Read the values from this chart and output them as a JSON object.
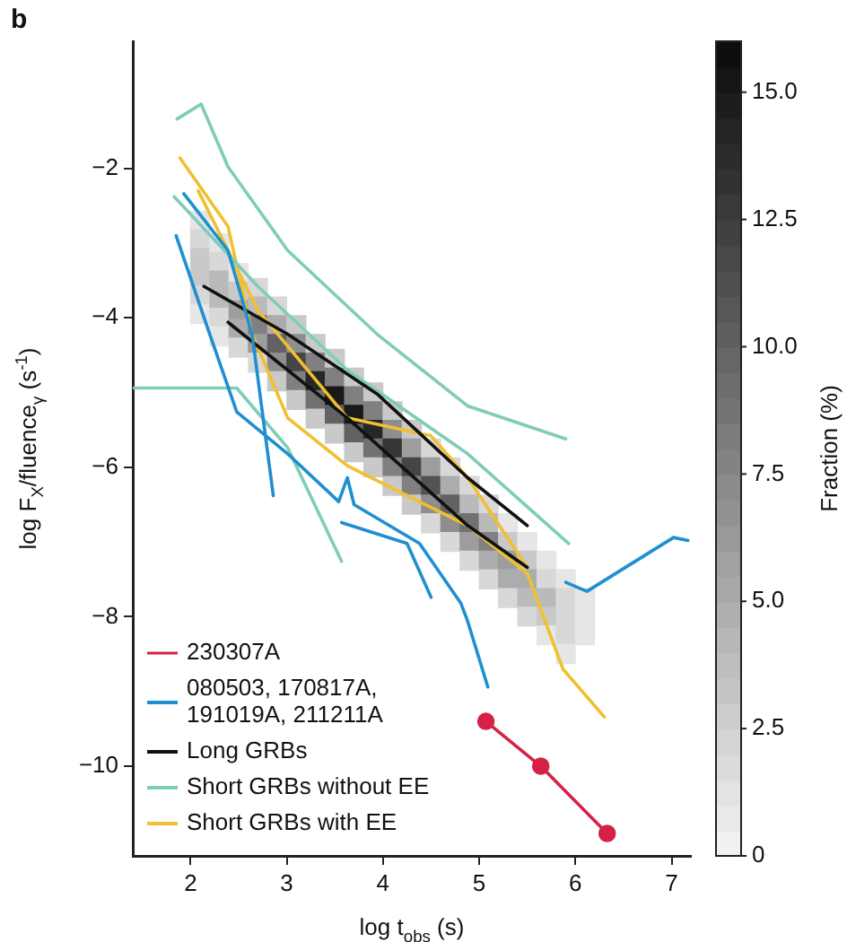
{
  "chart_data": {
    "type": "line",
    "title": "b",
    "xlabel": "log t$_{obs}$ (s)",
    "ylabel": "log F$_{X}$/fluence$_{γ}$ (s$^{-1}$)",
    "xlim": [
      1.4,
      7.2
    ],
    "xticks": [
      2,
      3,
      4,
      5,
      6,
      7
    ],
    "ylim": [
      -11.2,
      -0.3
    ],
    "yticks": [
      -10,
      -8,
      -6,
      -4,
      -2
    ],
    "grid": false,
    "legend": "bottom left",
    "clabel": "Fraction (%)",
    "clim": [
      0,
      16
    ],
    "cticks": [
      0,
      2.5,
      {
        "value": 5,
        "label": "5.0"
      },
      7.5,
      {
        "value": 10,
        "label": "10.0"
      },
      12.5,
      {
        "value": 15,
        "label": "15.0"
      }
    ],
    "series": [
      {
        "name": "230307A",
        "color": "#d62246",
        "marker": "circle",
        "x": [
          5.07,
          5.64,
          6.33
        ],
        "values": [
          -9.4,
          -10.0,
          -10.9
        ]
      },
      {
        "name": "080503, 170817A, 191019A, 211211A",
        "color": "#1f8fd0",
        "marker": "none",
        "x": [
          1.85,
          2.2,
          2.48,
          3.01,
          3.54,
          3.63,
          3.7,
          4.38,
          4.81,
          4.88,
          5.09
        ],
        "values": [
          -2.9,
          -4.22,
          -5.26,
          -5.82,
          -6.46,
          -6.14,
          -6.5,
          -7.02,
          -7.82,
          -8.06,
          -8.94
        ]
      },
      {
        "color": "#1f8fd0",
        "marker": "none",
        "x": [
          1.93,
          2.39,
          2.64,
          2.86
        ],
        "values": [
          -2.34,
          -3.1,
          -4.22,
          -6.38
        ]
      },
      {
        "color": "#1f8fd0",
        "marker": "none",
        "x": [
          3.57,
          4.25,
          4.5
        ],
        "values": [
          -6.74,
          -7.02,
          -7.74
        ]
      },
      {
        "color": "#1f8fd0",
        "marker": "none",
        "x": [
          5.9,
          6.12,
          7.02,
          7.17
        ],
        "values": [
          -7.54,
          -7.66,
          -6.94,
          -6.98
        ]
      },
      {
        "name": "Long GRBs",
        "color": "#111111",
        "marker": "none",
        "x": [
          2.14,
          3.01,
          3.94,
          4.88,
          5.5
        ],
        "values": [
          -3.58,
          -4.22,
          -5.02,
          -6.14,
          -6.78
        ]
      },
      {
        "color": "#111111",
        "marker": "none",
        "x": [
          2.39,
          3.63,
          4.88,
          5.5
        ],
        "values": [
          -4.06,
          -5.34,
          -6.78,
          -7.34
        ]
      },
      {
        "name": "Short GRBs without EE",
        "color": "#7fcdb8",
        "marker": "none",
        "x": [
          1.86,
          2.11,
          2.39,
          3.01,
          3.94,
          4.88,
          5.9
        ],
        "values": [
          -1.34,
          -1.14,
          -1.98,
          -3.1,
          -4.22,
          -5.18,
          -5.62
        ]
      },
      {
        "color": "#7fcdb8",
        "marker": "none",
        "x": [
          1.83,
          2.7,
          3.63,
          4.88,
          5.93
        ],
        "values": [
          -2.38,
          -3.58,
          -4.7,
          -5.82,
          -7.02
        ]
      },
      {
        "color": "#7fcdb8",
        "marker": "none",
        "x": [
          1.41,
          2.48,
          3.01,
          3.57
        ],
        "values": [
          -4.94,
          -4.94,
          -5.74,
          -7.26
        ]
      },
      {
        "name": "Short GRBs with EE",
        "color": "#f0c030",
        "marker": "none",
        "x": [
          1.89,
          2.39,
          2.64,
          3.01,
          3.63,
          4.25,
          4.88,
          5.5,
          5.87,
          6.3
        ],
        "values": [
          -1.86,
          -2.78,
          -4.22,
          -5.34,
          -5.98,
          -6.38,
          -6.78,
          -7.42,
          -8.7,
          -9.34
        ]
      },
      {
        "color": "#f0c030",
        "marker": "none",
        "x": [
          2.08,
          2.7,
          3.63,
          4.5,
          4.88,
          5.5
        ],
        "values": [
          -2.3,
          -3.9,
          -5.34,
          -5.58,
          -6.14,
          -7.34
        ]
      },
      {
        "type": "scatter",
        "marker": "square",
        "x": [
          2.1,
          2.1,
          2.1,
          2.1,
          2.1,
          2.1,
          2.3,
          2.3,
          2.3,
          2.3,
          2.3,
          2.3,
          2.5,
          2.5,
          2.5,
          2.5,
          2.5,
          2.7,
          2.7,
          2.7,
          2.7,
          2.7,
          2.9,
          2.9,
          2.9,
          2.9,
          2.9,
          3.1,
          3.1,
          3.1,
          3.1,
          3.1,
          3.3,
          3.3,
          3.3,
          3.3,
          3.3,
          3.5,
          3.5,
          3.5,
          3.5,
          3.5,
          3.7,
          3.7,
          3.7,
          3.7,
          3.7,
          3.9,
          3.9,
          3.9,
          3.9,
          3.9,
          4.1,
          4.1,
          4.1,
          4.1,
          4.1,
          4.3,
          4.3,
          4.3,
          4.3,
          4.3,
          4.5,
          4.5,
          4.5,
          4.5,
          4.5,
          4.7,
          4.7,
          4.7,
          4.7,
          4.7,
          4.9,
          4.9,
          4.9,
          4.9,
          4.9,
          5.1,
          5.1,
          5.1,
          5.1,
          5.1,
          5.3,
          5.3,
          5.3,
          5.3,
          5.3,
          5.5,
          5.5,
          5.5,
          5.5,
          5.5,
          5.7,
          5.7,
          5.7,
          5.7,
          5.7,
          5.9,
          5.9,
          5.9,
          5.9,
          5.9,
          6.1,
          6.1,
          6.1
        ],
        "values": [
          -2.7,
          -2.95,
          -3.2,
          -3.45,
          -3.7,
          -3.95,
          -3.0,
          -3.25,
          -3.5,
          -3.75,
          -4.0,
          -4.25,
          -3.4,
          -3.65,
          -3.9,
          -4.15,
          -4.4,
          -3.6,
          -3.85,
          -4.1,
          -4.35,
          -4.6,
          -3.85,
          -4.1,
          -4.35,
          -4.6,
          -4.85,
          -4.1,
          -4.35,
          -4.6,
          -4.85,
          -5.1,
          -4.35,
          -4.6,
          -4.85,
          -5.1,
          -5.35,
          -4.55,
          -4.8,
          -5.05,
          -5.3,
          -5.55,
          -4.8,
          -5.05,
          -5.3,
          -5.55,
          -5.8,
          -5.0,
          -5.25,
          -5.5,
          -5.75,
          -6.0,
          -5.25,
          -5.5,
          -5.75,
          -6.0,
          -6.25,
          -5.5,
          -5.75,
          -6.0,
          -6.25,
          -6.5,
          -5.75,
          -6.0,
          -6.25,
          -6.5,
          -6.75,
          -6.0,
          -6.25,
          -6.5,
          -6.75,
          -7.0,
          -6.25,
          -6.5,
          -6.75,
          -7.0,
          -7.25,
          -6.5,
          -6.75,
          -7.0,
          -7.25,
          -7.5,
          -6.75,
          -7.0,
          -7.25,
          -7.5,
          -7.75,
          -7.0,
          -7.25,
          -7.5,
          -7.75,
          -8.0,
          -7.25,
          -7.5,
          -7.75,
          -8.0,
          -8.25,
          -7.5,
          -7.75,
          -8.0,
          -8.25,
          -8.5,
          -7.75,
          -8.0,
          -8.25
        ],
        "colors": [
          "#e6e6e6",
          "#d8d8d8",
          "#c9c9c9",
          "#c9c9c9",
          "#d8d8d8",
          "#e6e6e6",
          "#e6e6e6",
          "#d8d8d8",
          "#bababa",
          "#bababa",
          "#d8d8d8",
          "#e6e6e6",
          "#e6e6e6",
          "#c9c9c9",
          "#9d9d9d",
          "#acacac",
          "#d8d8d8",
          "#d8d8d8",
          "#bababa",
          "#808080",
          "#9d9d9d",
          "#d8d8d8",
          "#d8d8d8",
          "#acacac",
          "#626262",
          "#8e8e8e",
          "#c9c9c9",
          "#c9c9c9",
          "#8e8e8e",
          "#454545",
          "#808080",
          "#c9c9c9",
          "#c9c9c9",
          "#808080",
          "#272727",
          "#717171",
          "#c9c9c9",
          "#c9c9c9",
          "#808080",
          "#191919",
          "#626262",
          "#c9c9c9",
          "#c9c9c9",
          "#808080",
          "#191919",
          "#626262",
          "#c9c9c9",
          "#c9c9c9",
          "#808080",
          "#272727",
          "#717171",
          "#c9c9c9",
          "#c9c9c9",
          "#8e8e8e",
          "#363636",
          "#808080",
          "#c9c9c9",
          "#c9c9c9",
          "#9d9d9d",
          "#454545",
          "#808080",
          "#c9c9c9",
          "#d8d8d8",
          "#9d9d9d",
          "#535353",
          "#8e8e8e",
          "#d8d8d8",
          "#d8d8d8",
          "#acacac",
          "#626262",
          "#8e8e8e",
          "#d8d8d8",
          "#d8d8d8",
          "#bababa",
          "#717171",
          "#9d9d9d",
          "#d8d8d8",
          "#d8d8d8",
          "#bababa",
          "#808080",
          "#acacac",
          "#d8d8d8",
          "#e6e6e6",
          "#c9c9c9",
          "#9d9d9d",
          "#acacac",
          "#d8d8d8",
          "#e6e6e6",
          "#c9c9c9",
          "#acacac",
          "#bababa",
          "#d8d8d8",
          "#e6e6e6",
          "#d8d8d8",
          "#bababa",
          "#c9c9c9",
          "#e6e6e6",
          "#e6e6e6",
          "#d8d8d8",
          "#d8d8d8",
          "#d8d8d8",
          "#e6e6e6",
          "#e6e6e6",
          "#e6e6e6",
          "#e6e6e6"
        ],
        "cvalues": [
          1,
          2,
          3,
          3,
          2,
          1,
          1,
          2,
          4,
          4,
          2,
          1,
          1,
          3,
          6,
          5,
          2,
          2,
          4,
          8,
          6,
          2,
          2,
          5,
          10,
          7,
          3,
          3,
          7,
          12,
          8,
          3,
          3,
          8,
          14,
          9,
          3,
          3,
          8,
          15,
          10,
          3,
          3,
          8,
          15,
          10,
          3,
          3,
          8,
          14,
          9,
          3,
          3,
          7,
          13,
          8,
          3,
          3,
          6,
          12,
          8,
          3,
          2,
          6,
          11,
          7,
          2,
          2,
          5,
          10,
          7,
          2,
          2,
          4,
          9,
          6,
          2,
          2,
          4,
          8,
          5,
          2,
          1,
          3,
          6,
          5,
          2,
          1,
          3,
          5,
          4,
          2,
          1,
          2,
          4,
          3,
          1,
          1,
          2,
          2,
          2,
          1,
          1,
          1,
          1
        ]
      }
    ]
  }
}
